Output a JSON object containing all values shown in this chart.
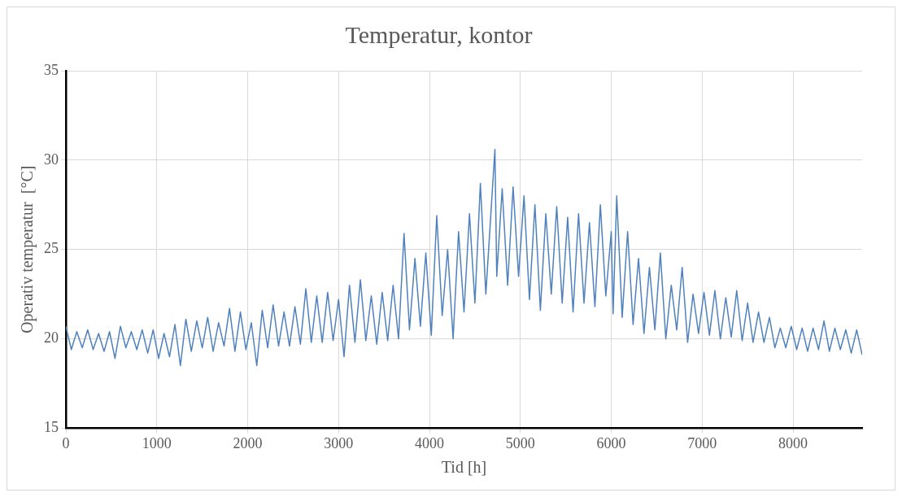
{
  "chart_data": {
    "type": "line",
    "title": "Temperatur, kontor",
    "xlabel": "Tid [h]",
    "ylabel": "Operativ temperatur  [°C]",
    "xlim": [
      0,
      8760
    ],
    "xticks": [
      0,
      1000,
      2000,
      3000,
      4000,
      5000,
      6000,
      7000,
      8000
    ],
    "ylim": [
      15,
      35
    ],
    "yticks": [
      15,
      20,
      25,
      30,
      35
    ],
    "grid": true,
    "legend": false,
    "marker": "none",
    "line_style": "solid",
    "series": [
      {
        "color": "#4f81bd",
        "x": [
          0,
          60,
          120,
          180,
          240,
          300,
          360,
          420,
          480,
          540,
          600,
          660,
          720,
          780,
          840,
          900,
          960,
          1020,
          1080,
          1140,
          1200,
          1260,
          1320,
          1380,
          1440,
          1500,
          1560,
          1620,
          1680,
          1740,
          1800,
          1860,
          1920,
          1980,
          2040,
          2100,
          2160,
          2220,
          2280,
          2340,
          2400,
          2460,
          2520,
          2580,
          2640,
          2700,
          2760,
          2820,
          2880,
          2940,
          3000,
          3060,
          3120,
          3180,
          3240,
          3300,
          3360,
          3420,
          3480,
          3540,
          3600,
          3660,
          3720,
          3780,
          3840,
          3900,
          3960,
          4020,
          4080,
          4140,
          4200,
          4260,
          4320,
          4380,
          4440,
          4500,
          4560,
          4620,
          4720,
          4740,
          4800,
          4860,
          4920,
          4980,
          5040,
          5100,
          5160,
          5220,
          5280,
          5340,
          5400,
          5460,
          5520,
          5580,
          5640,
          5700,
          5760,
          5820,
          5880,
          5940,
          6000,
          6020,
          6060,
          6120,
          6180,
          6240,
          6300,
          6360,
          6420,
          6480,
          6540,
          6600,
          6660,
          6720,
          6780,
          6840,
          6900,
          6960,
          7020,
          7080,
          7140,
          7200,
          7260,
          7320,
          7380,
          7440,
          7500,
          7560,
          7620,
          7680,
          7740,
          7800,
          7860,
          7920,
          7980,
          8040,
          8100,
          8160,
          8220,
          8280,
          8340,
          8400,
          8460,
          8520,
          8580,
          8640,
          8700,
          8760
        ],
        "values": [
          20.7,
          19.4,
          20.4,
          19.5,
          20.5,
          19.4,
          20.3,
          19.3,
          20.4,
          18.9,
          20.7,
          19.5,
          20.4,
          19.4,
          20.5,
          19.2,
          20.5,
          18.9,
          20.3,
          19.0,
          20.8,
          18.5,
          21.1,
          19.3,
          21.0,
          19.5,
          21.2,
          19.3,
          20.9,
          19.6,
          21.7,
          19.3,
          21.5,
          19.4,
          20.9,
          18.5,
          21.6,
          19.5,
          21.9,
          19.6,
          21.5,
          19.6,
          21.8,
          19.7,
          22.8,
          19.8,
          22.4,
          19.8,
          22.6,
          19.9,
          22.2,
          19.0,
          23.0,
          19.8,
          23.3,
          19.9,
          22.4,
          19.7,
          22.6,
          19.9,
          23.0,
          20.0,
          25.9,
          20.5,
          24.5,
          20.7,
          24.8,
          20.2,
          26.9,
          21.3,
          25.0,
          20.0,
          26.0,
          21.5,
          27.0,
          22.0,
          28.7,
          22.5,
          30.6,
          23.5,
          28.4,
          23.0,
          28.5,
          23.5,
          28.0,
          22.2,
          27.5,
          21.6,
          27.0,
          22.5,
          27.4,
          22.0,
          26.8,
          21.5,
          27.0,
          22.0,
          26.5,
          21.8,
          27.5,
          22.4,
          26.0,
          21.4,
          28.0,
          21.2,
          26.0,
          20.8,
          24.5,
          20.3,
          24.0,
          20.5,
          24.8,
          20.0,
          23.0,
          20.5,
          24.0,
          19.8,
          22.5,
          20.3,
          22.6,
          20.2,
          22.7,
          20.0,
          22.3,
          20.1,
          22.7,
          19.9,
          22.0,
          19.8,
          21.5,
          19.8,
          21.2,
          19.5,
          20.6,
          19.5,
          20.7,
          19.4,
          20.6,
          19.3,
          20.6,
          19.4,
          21.0,
          19.3,
          20.6,
          19.4,
          20.5,
          19.2,
          20.5,
          19.1
        ]
      }
    ]
  }
}
